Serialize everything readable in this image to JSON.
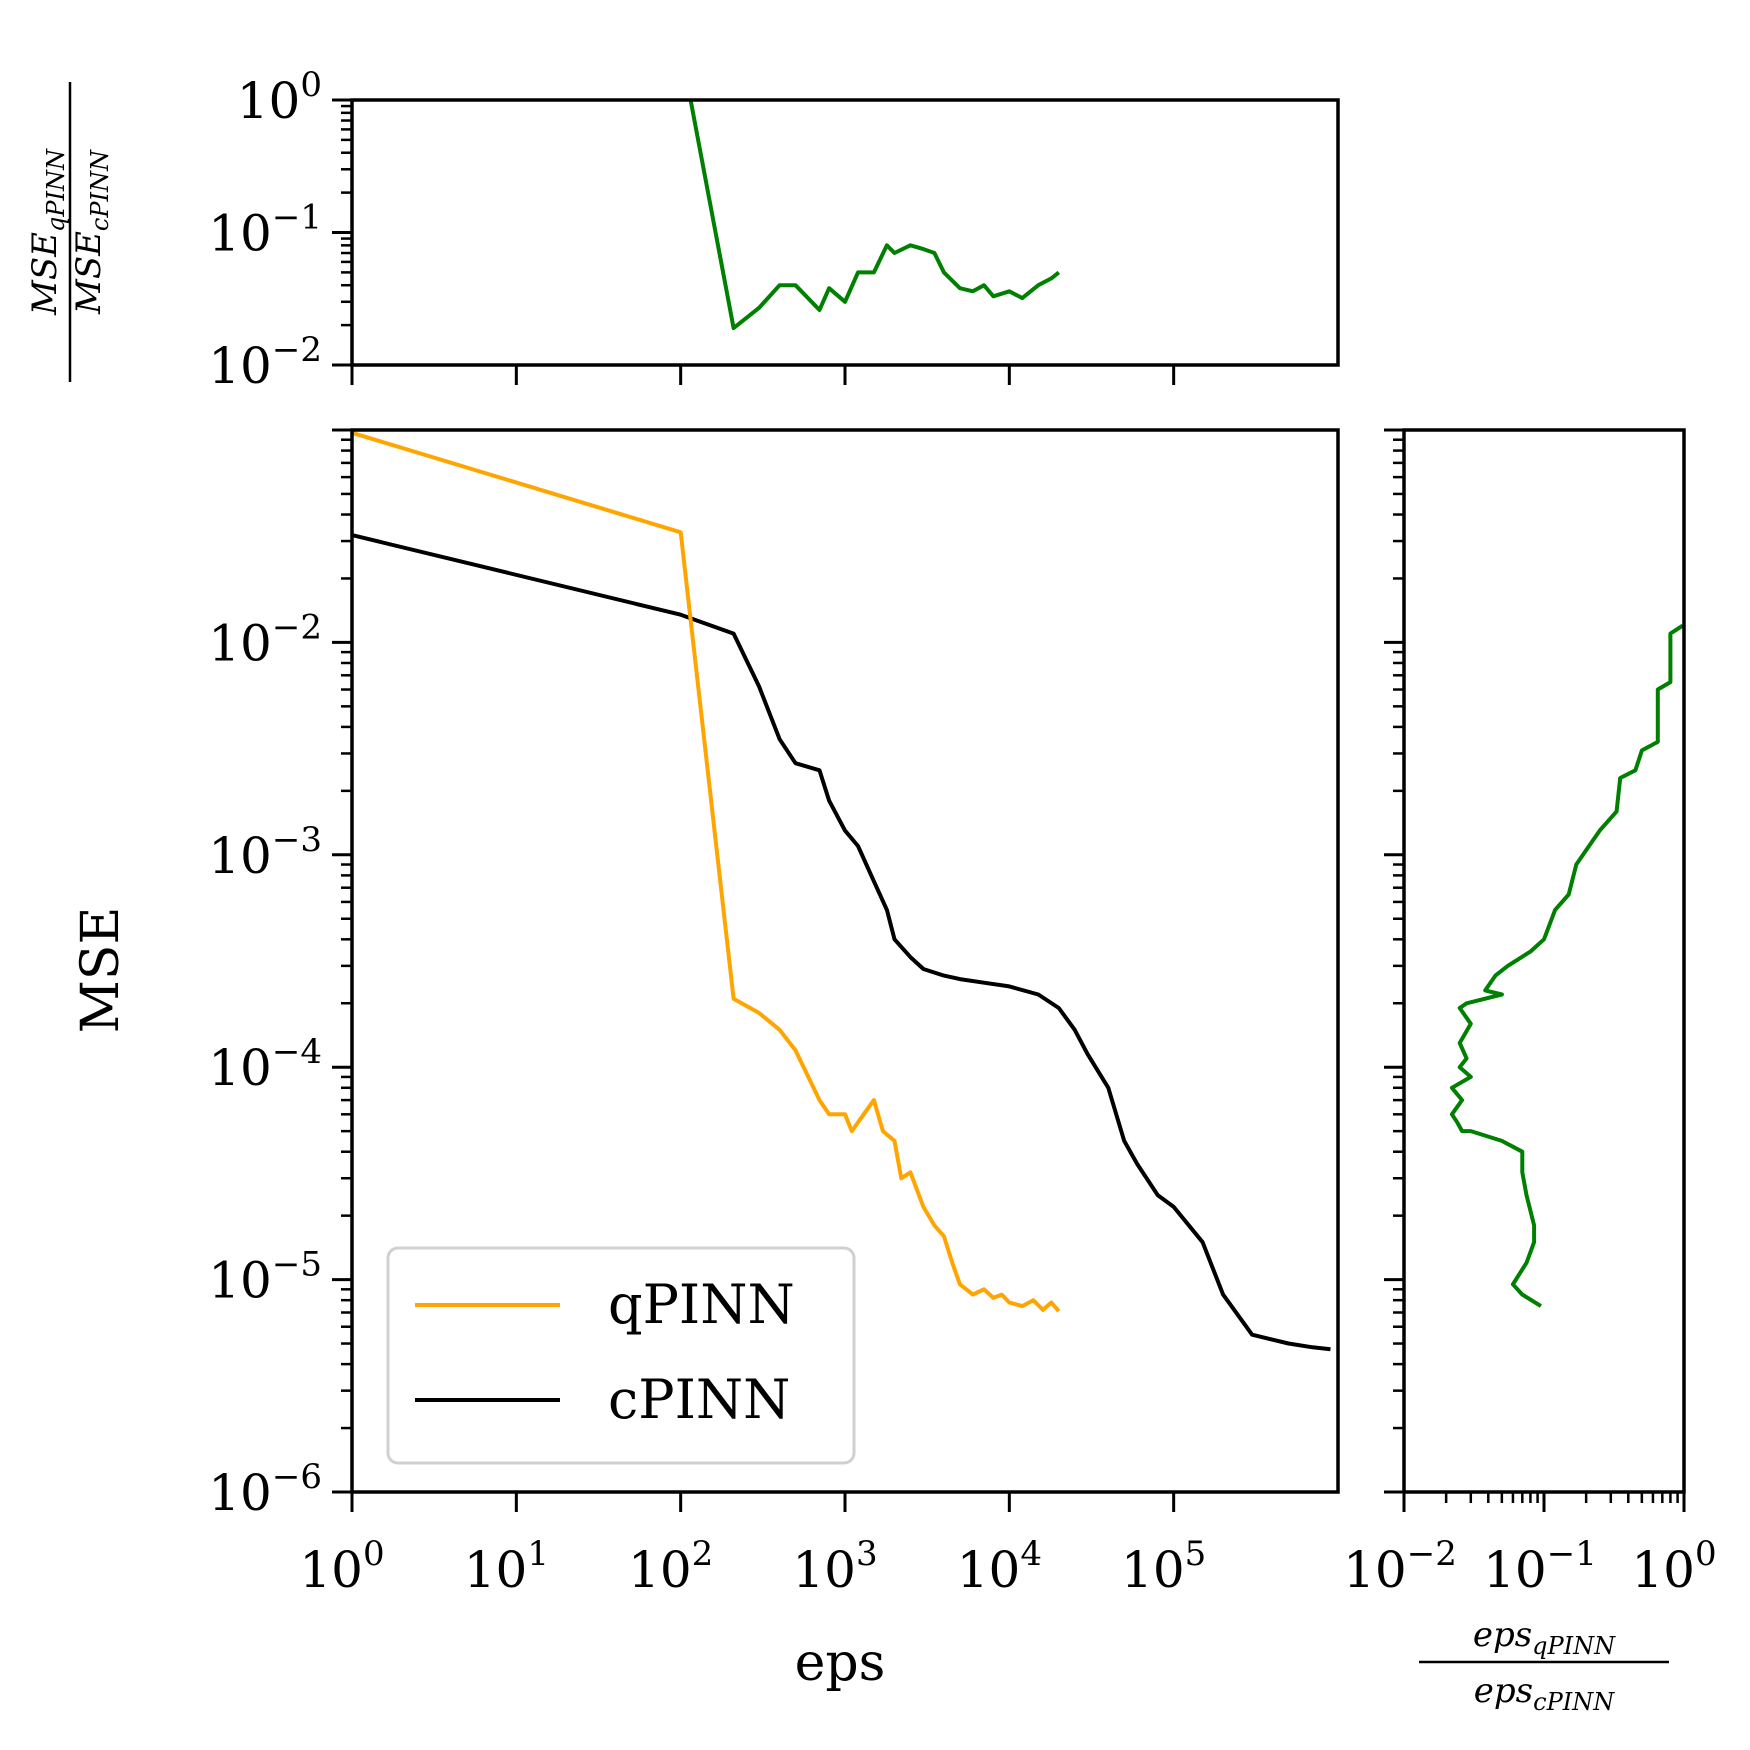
{
  "chart_data": [
    {
      "id": "main",
      "type": "line",
      "xlabel": "eps",
      "ylabel": "MSE",
      "xscale": "log",
      "yscale": "log",
      "xlim": [
        1,
        1000000
      ],
      "ylim": [
        1e-06,
        0.1
      ],
      "xticks": [
        {
          "base": "10",
          "exp": "0"
        },
        {
          "base": "10",
          "exp": "1"
        },
        {
          "base": "10",
          "exp": "2"
        },
        {
          "base": "10",
          "exp": "3"
        },
        {
          "base": "10",
          "exp": "4"
        },
        {
          "base": "10",
          "exp": "5"
        }
      ],
      "yticks": [
        {
          "base": "10",
          "exp": "−6"
        },
        {
          "base": "10",
          "exp": "−5"
        },
        {
          "base": "10",
          "exp": "−4"
        },
        {
          "base": "10",
          "exp": "−3"
        },
        {
          "base": "10",
          "exp": "−2"
        }
      ],
      "legend": {
        "placement": "lower left",
        "entries": [
          "qPINN",
          "cPINN"
        ]
      },
      "series": [
        {
          "name": "qPINN",
          "color": "#FFA500",
          "x": [
            1,
            100,
            210,
            300,
            400,
            500,
            700,
            800,
            1000,
            1100,
            1300,
            1500,
            1700,
            2000,
            2200,
            2500,
            3000,
            3500,
            4000,
            4500,
            5000,
            6000,
            7000,
            8000,
            9000,
            10000,
            12000,
            14000,
            16000,
            18000,
            20000
          ],
          "y": [
            0.097,
            0.033,
            0.00021,
            0.00018,
            0.00015,
            0.00012,
            7e-05,
            6e-05,
            6e-05,
            5e-05,
            6e-05,
            7e-05,
            5e-05,
            4.5e-05,
            3e-05,
            3.2e-05,
            2.2e-05,
            1.8e-05,
            1.6e-05,
            1.2e-05,
            9.5e-06,
            8.5e-06,
            9e-06,
            8.2e-06,
            8.5e-06,
            7.8e-06,
            7.5e-06,
            8e-06,
            7.2e-06,
            7.8e-06,
            7.1e-06
          ]
        },
        {
          "name": "cPINN",
          "color": "#000000",
          "x": [
            1,
            100,
            210,
            300,
            400,
            500,
            700,
            800,
            1000,
            1200,
            1500,
            1800,
            2000,
            2500,
            3000,
            4000,
            5000,
            7000,
            10000,
            15000,
            20000,
            25000,
            30000,
            40000,
            50000,
            60000,
            80000,
            100000,
            150000,
            200000,
            300000,
            500000,
            700000,
            900000
          ],
          "y": [
            0.032,
            0.0135,
            0.011,
            0.0062,
            0.0035,
            0.0027,
            0.0025,
            0.0018,
            0.0013,
            0.0011,
            0.00075,
            0.00055,
            0.0004,
            0.00033,
            0.00029,
            0.00027,
            0.00026,
            0.00025,
            0.00024,
            0.00022,
            0.00019,
            0.00015,
            0.000115,
            8e-05,
            4.5e-05,
            3.5e-05,
            2.5e-05,
            2.2e-05,
            1.5e-05,
            8.5e-06,
            5.5e-06,
            5e-06,
            4.8e-06,
            4.7e-06
          ]
        }
      ]
    },
    {
      "id": "top",
      "type": "line",
      "ylabel_num": {
        "base": "MSE",
        "sub": "qPINN"
      },
      "ylabel_den": {
        "base": "MSE",
        "sub": "cPINN"
      },
      "xscale": "log",
      "yscale": "log",
      "xlim": [
        1,
        1000000
      ],
      "ylim": [
        0.01,
        1
      ],
      "yticks": [
        {
          "base": "10",
          "exp": "−2"
        },
        {
          "base": "10",
          "exp": "−1"
        },
        {
          "base": "10",
          "exp": "0"
        }
      ],
      "series": [
        {
          "color": "#008000",
          "x": [
            115,
            210,
            300,
            400,
            500,
            700,
            800,
            1000,
            1200,
            1500,
            1800,
            2000,
            2500,
            3000,
            3500,
            4000,
            5000,
            6000,
            7000,
            8000,
            10000,
            12000,
            15000,
            18000,
            20000
          ],
          "y": [
            1.0,
            0.019,
            0.027,
            0.04,
            0.04,
            0.026,
            0.038,
            0.03,
            0.05,
            0.05,
            0.08,
            0.07,
            0.08,
            0.075,
            0.07,
            0.05,
            0.038,
            0.036,
            0.04,
            0.033,
            0.036,
            0.032,
            0.04,
            0.045,
            0.05
          ]
        }
      ]
    },
    {
      "id": "right",
      "type": "line",
      "xlabel_num": {
        "base": "eps",
        "sub": "qPINN"
      },
      "xlabel_den": {
        "base": "eps",
        "sub": "cPINN"
      },
      "xscale": "log",
      "yscale": "log",
      "xlim": [
        0.01,
        1
      ],
      "ylim": [
        1e-06,
        0.1
      ],
      "xticks": [
        {
          "base": "10",
          "exp": "−2"
        },
        {
          "base": "10",
          "exp": "−1"
        },
        {
          "base": "10",
          "exp": "0"
        }
      ],
      "series": [
        {
          "color": "#008000",
          "x": [
            0.98,
            0.8,
            0.8,
            0.65,
            0.65,
            0.5,
            0.45,
            0.35,
            0.33,
            0.25,
            0.2,
            0.17,
            0.15,
            0.12,
            0.1,
            0.08,
            0.055,
            0.045,
            0.038,
            0.05,
            0.028,
            0.025,
            0.03,
            0.025,
            0.028,
            0.025,
            0.03,
            0.022,
            0.026,
            0.022,
            0.024,
            0.026,
            0.03,
            0.05,
            0.07,
            0.07,
            0.075,
            0.085,
            0.085,
            0.075,
            0.06,
            0.07,
            0.095
          ],
          "y": [
            0.012,
            0.011,
            0.0065,
            0.006,
            0.0034,
            0.0031,
            0.0025,
            0.0023,
            0.0016,
            0.0013,
            0.00105,
            0.0009,
            0.00065,
            0.00055,
            0.0004,
            0.00035,
            0.0003,
            0.00027,
            0.00023,
            0.00022,
            0.0002,
            0.00019,
            0.00016,
            0.00013,
            0.00011,
            0.0001,
            9e-05,
            8e-05,
            7e-05,
            6e-05,
            5.5e-05,
            5e-05,
            5e-05,
            4.5e-05,
            4e-05,
            3.2e-05,
            2.5e-05,
            1.8e-05,
            1.5e-05,
            1.2e-05,
            9.5e-06,
            8.5e-06,
            7.5e-06
          ]
        }
      ]
    }
  ]
}
